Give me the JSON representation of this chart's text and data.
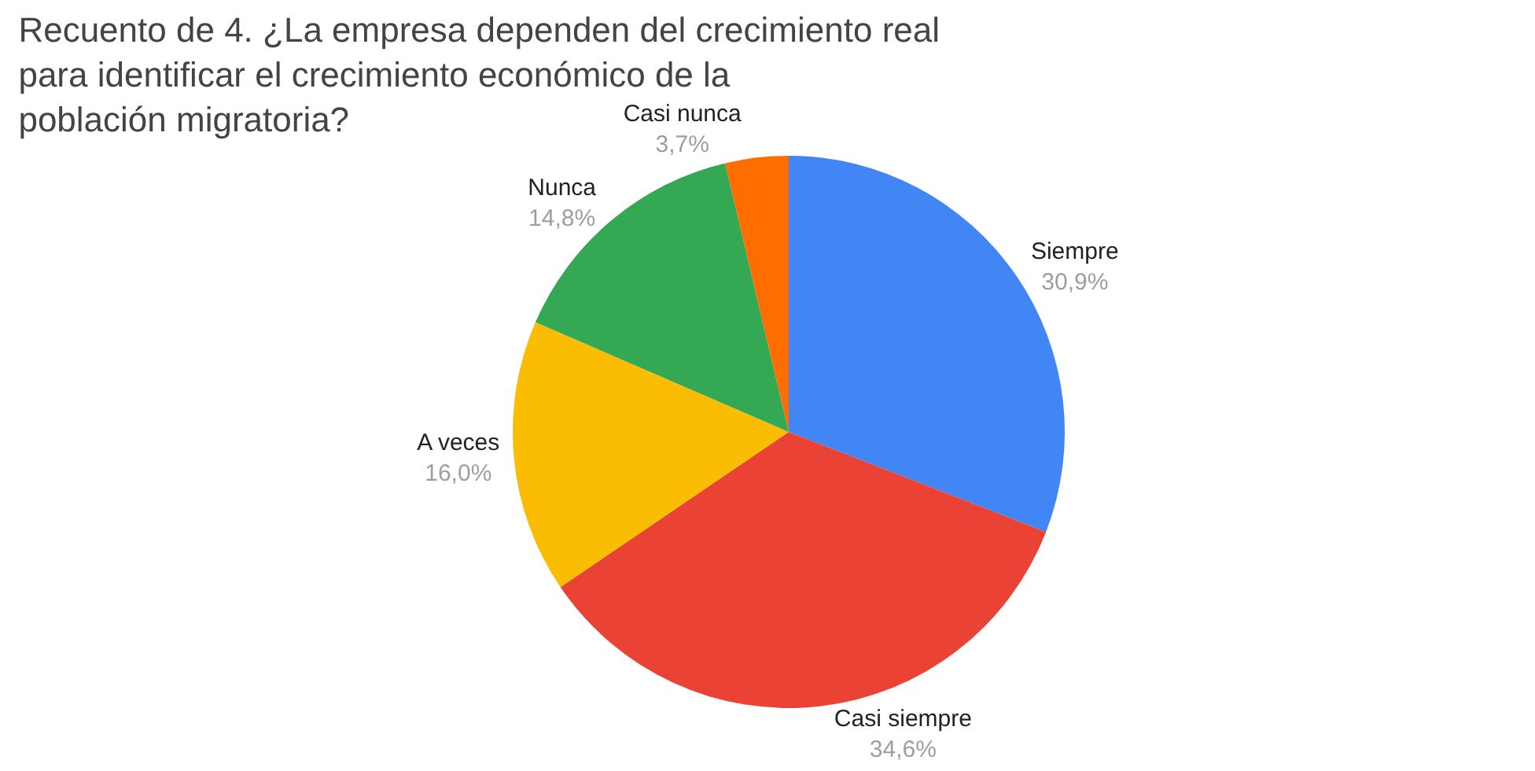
{
  "chart_data": {
    "type": "pie",
    "title": "Recuento de 4. ¿La empresa dependen del crecimiento real para identificar el crecimiento económico de la población migratoria?",
    "categories": [
      "Siempre",
      "Casi siempre",
      "A veces",
      "Nunca",
      "Casi nunca"
    ],
    "values": [
      30.9,
      34.6,
      16.0,
      14.8,
      3.7
    ],
    "value_labels": [
      "30,9%",
      "34,6%",
      "16,0%",
      "14,8%",
      "3,7%"
    ],
    "colors": [
      "#4285f4",
      "#ea4335",
      "#fbbc04",
      "#34a853",
      "#ff6d01"
    ],
    "legend": false
  }
}
